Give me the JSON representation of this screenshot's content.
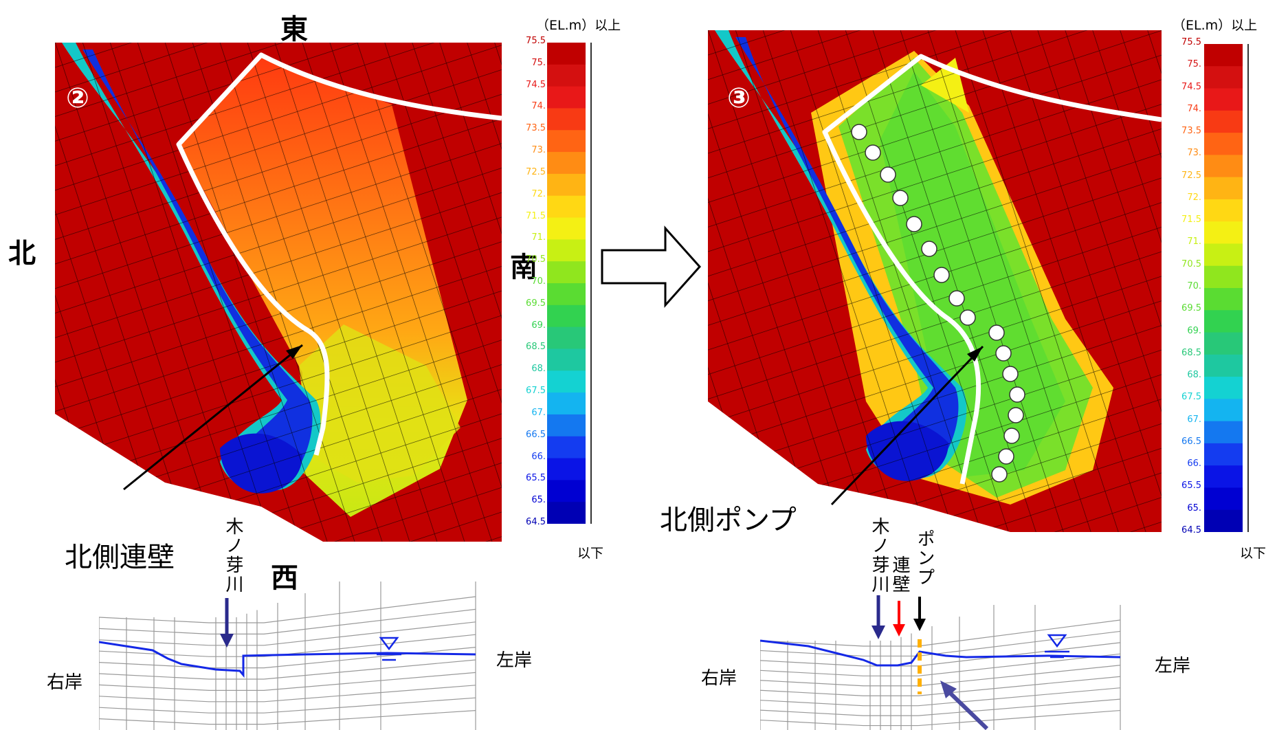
{
  "left": {
    "compass": {
      "north": "北",
      "east": "東",
      "south": "南",
      "west": "西"
    },
    "marker": "②",
    "callout": "北側連壁",
    "section": {
      "river_label": "木ノ芽川",
      "right_bank": "右岸",
      "left_bank": "左岸"
    }
  },
  "right": {
    "marker": "③",
    "callout": "北側ポンプ",
    "section": {
      "river_label": "木ノ芽川",
      "wall_label": "連壁",
      "pump_label": "ポンプ",
      "right_bank": "右岸",
      "left_bank": "左岸"
    }
  },
  "scale": {
    "unit_top": "（EL.m）以上",
    "unit_bottom": "以下",
    "ticks": [
      "75.5",
      "75.",
      "74.5",
      "74.",
      "73.5",
      "73.",
      "72.5",
      "72.",
      "71.5",
      "71.",
      "70.5",
      "70.",
      "69.5",
      "69.",
      "68.5",
      "68.",
      "67.5",
      "67.",
      "66.5",
      "66.",
      "65.5",
      "65.",
      "64.5"
    ],
    "colors": [
      "#c00000",
      "#d41010",
      "#e81818",
      "#f83a14",
      "#ff6414",
      "#ff8c14",
      "#ffb414",
      "#ffd814",
      "#f4f014",
      "#c8f014",
      "#90e61e",
      "#5adc32",
      "#32d250",
      "#28c878",
      "#1ec8a0",
      "#14d2d2",
      "#14b4f0",
      "#1478f0",
      "#143cf0",
      "#0a14e6",
      "#0000d2",
      "#0000b4"
    ]
  },
  "colors": {
    "arrow_blue": "#2a2a8c",
    "wall_red": "#ff0000",
    "pump_orange": "#ffb000",
    "water_blue": "#1428e6"
  }
}
